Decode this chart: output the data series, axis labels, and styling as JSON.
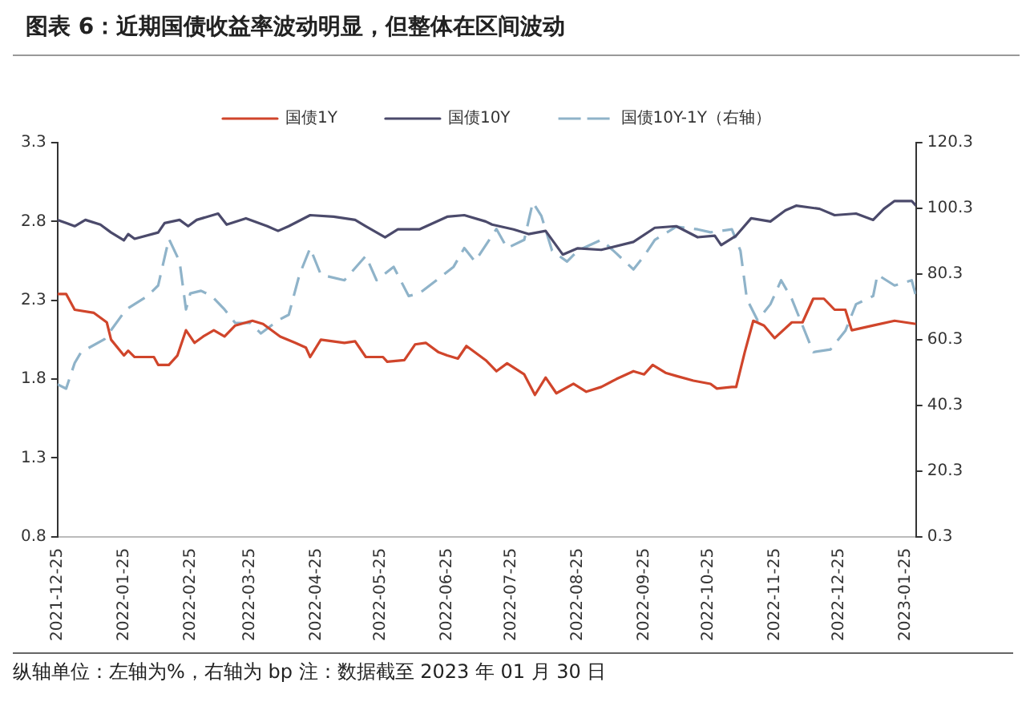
{
  "chart_data": {
    "type": "line",
    "title": "图表 6：近期国债收益率波动明显，但整体在区间波动",
    "annotations": [
      "纵轴单位：左轴为%，右轴为 bp   注：数据截至 2023 年 01 月 30 日"
    ],
    "xlim": [
      "2021-12-25",
      "2023-01-30"
    ],
    "xticks": [
      "2021-12-25",
      "2022-01-25",
      "2022-02-25",
      "2022-03-25",
      "2022-04-25",
      "2022-05-25",
      "2022-06-25",
      "2022-07-25",
      "2022-08-25",
      "2022-09-25",
      "2022-10-25",
      "2022-11-25",
      "2022-12-25",
      "2023-01-25"
    ],
    "ylim": [
      0.8,
      3.3
    ],
    "yticks": [
      0.8,
      1.3,
      1.8,
      2.3,
      2.8,
      3.3
    ],
    "y2lim": [
      0.3,
      120.3
    ],
    "y2ticks": [
      0.3,
      20.3,
      40.3,
      60.3,
      80.3,
      100.3,
      120.3
    ],
    "grid": false,
    "legend": "top",
    "marker": "none",
    "series": [
      {
        "name": "国债1Y",
        "color": "#d0452b",
        "line_style": "solid",
        "x": [
          "2021-12-25",
          "2021-12-29",
          "2022-01-02",
          "2022-01-11",
          "2022-01-17",
          "2022-01-19",
          "2022-01-25",
          "2022-01-27",
          "2022-01-30",
          "2022-02-08",
          "2022-02-10",
          "2022-02-15",
          "2022-02-19",
          "2022-02-23",
          "2022-02-27",
          "2022-03-03",
          "2022-03-08",
          "2022-03-13",
          "2022-03-18",
          "2022-03-26",
          "2022-03-31",
          "2022-04-08",
          "2022-04-15",
          "2022-04-20",
          "2022-04-22",
          "2022-04-27",
          "2022-05-08",
          "2022-05-13",
          "2022-05-18",
          "2022-05-26",
          "2022-05-28",
          "2022-06-05",
          "2022-06-10",
          "2022-06-15",
          "2022-06-21",
          "2022-06-25",
          "2022-06-30",
          "2022-07-04",
          "2022-07-13",
          "2022-07-18",
          "2022-07-23",
          "2022-07-31",
          "2022-08-05",
          "2022-08-10",
          "2022-08-15",
          "2022-08-23",
          "2022-08-29",
          "2022-09-05",
          "2022-09-12",
          "2022-09-20",
          "2022-09-25",
          "2022-09-29",
          "2022-10-05",
          "2022-10-10",
          "2022-10-18",
          "2022-10-26",
          "2022-10-29",
          "2022-11-05",
          "2022-11-07",
          "2022-11-11",
          "2022-11-15",
          "2022-11-20",
          "2022-11-25",
          "2022-12-03",
          "2022-12-08",
          "2022-12-13",
          "2022-12-18",
          "2022-12-23",
          "2022-12-28",
          "2022-12-31",
          "2023-01-10",
          "2023-01-20",
          "2023-01-30"
        ],
        "values": [
          2.34,
          2.34,
          2.24,
          2.22,
          2.16,
          2.05,
          1.95,
          1.98,
          1.94,
          1.94,
          1.89,
          1.89,
          1.95,
          2.11,
          2.03,
          2.07,
          2.11,
          2.07,
          2.14,
          2.17,
          2.15,
          2.07,
          2.03,
          2.0,
          1.94,
          2.05,
          2.03,
          2.04,
          1.94,
          1.94,
          1.91,
          1.92,
          2.02,
          2.03,
          1.97,
          1.95,
          1.93,
          2.01,
          1.92,
          1.85,
          1.9,
          1.83,
          1.7,
          1.81,
          1.71,
          1.77,
          1.72,
          1.75,
          1.8,
          1.85,
          1.83,
          1.89,
          1.84,
          1.82,
          1.79,
          1.77,
          1.74,
          1.75,
          1.75,
          1.97,
          2.17,
          2.14,
          2.06,
          2.16,
          2.16,
          2.31,
          2.31,
          2.24,
          2.24,
          2.11,
          2.14,
          2.17,
          2.15
        ]
      },
      {
        "name": "国债10Y",
        "color": "#4b4a6b",
        "line_style": "solid",
        "x": [
          "2021-12-25",
          "2021-12-29",
          "2022-01-02",
          "2022-01-07",
          "2022-01-14",
          "2022-01-19",
          "2022-01-25",
          "2022-01-27",
          "2022-01-30",
          "2022-02-10",
          "2022-02-13",
          "2022-02-20",
          "2022-02-24",
          "2022-02-28",
          "2022-03-10",
          "2022-03-14",
          "2022-03-23",
          "2022-04-02",
          "2022-04-07",
          "2022-04-12",
          "2022-04-22",
          "2022-05-03",
          "2022-05-13",
          "2022-05-18",
          "2022-05-27",
          "2022-06-02",
          "2022-06-12",
          "2022-06-25",
          "2022-07-03",
          "2022-07-13",
          "2022-07-16",
          "2022-07-26",
          "2022-08-02",
          "2022-08-10",
          "2022-08-18",
          "2022-08-25",
          "2022-09-05",
          "2022-09-20",
          "2022-09-30",
          "2022-10-10",
          "2022-10-20",
          "2022-10-28",
          "2022-10-31",
          "2022-11-07",
          "2022-11-14",
          "2022-11-23",
          "2022-11-30",
          "2022-12-05",
          "2022-12-16",
          "2022-12-23",
          "2023-01-02",
          "2023-01-10",
          "2023-01-15",
          "2023-01-20",
          "2023-01-28",
          "2023-01-30"
        ],
        "values": [
          2.81,
          2.79,
          2.77,
          2.81,
          2.78,
          2.73,
          2.68,
          2.72,
          2.69,
          2.73,
          2.79,
          2.81,
          2.77,
          2.81,
          2.85,
          2.78,
          2.82,
          2.77,
          2.74,
          2.77,
          2.84,
          2.83,
          2.81,
          2.77,
          2.7,
          2.75,
          2.75,
          2.83,
          2.84,
          2.8,
          2.78,
          2.75,
          2.72,
          2.74,
          2.59,
          2.63,
          2.62,
          2.67,
          2.76,
          2.77,
          2.7,
          2.71,
          2.65,
          2.71,
          2.82,
          2.8,
          2.87,
          2.9,
          2.88,
          2.84,
          2.85,
          2.81,
          2.88,
          2.93,
          2.93,
          2.9
        ]
      },
      {
        "name": "国债10Y-1Y（右轴）",
        "color": "#8fb3c9",
        "line_style": "dashed",
        "axis": "y2",
        "x": [
          "2021-12-25",
          "2021-12-29",
          "2022-01-02",
          "2022-01-05",
          "2022-01-16",
          "2022-01-26",
          "2022-02-05",
          "2022-02-10",
          "2022-02-15",
          "2022-02-20",
          "2022-02-23",
          "2022-02-25",
          "2022-03-02",
          "2022-03-07",
          "2022-03-13",
          "2022-03-18",
          "2022-03-25",
          "2022-03-30",
          "2022-04-07",
          "2022-04-12",
          "2022-04-17",
          "2022-04-22",
          "2022-04-27",
          "2022-05-08",
          "2022-05-18",
          "2022-05-23",
          "2022-05-31",
          "2022-06-07",
          "2022-06-12",
          "2022-06-20",
          "2022-06-28",
          "2022-07-03",
          "2022-07-08",
          "2022-07-18",
          "2022-07-23",
          "2022-07-31",
          "2022-08-04",
          "2022-08-08",
          "2022-08-13",
          "2022-08-20",
          "2022-08-25",
          "2022-09-05",
          "2022-09-12",
          "2022-09-20",
          "2022-09-25",
          "2022-09-30",
          "2022-10-10",
          "2022-10-20",
          "2022-10-26",
          "2022-11-05",
          "2022-11-09",
          "2022-11-12",
          "2022-11-17",
          "2022-11-23",
          "2022-11-28",
          "2022-12-03",
          "2022-12-08",
          "2022-12-13",
          "2022-12-21",
          "2022-12-28",
          "2023-01-02",
          "2023-01-10",
          "2023-01-12",
          "2023-01-20",
          "2023-01-28",
          "2023-01-30"
        ],
        "values": [
          46.7,
          45.4,
          53.2,
          56.5,
          60.5,
          69.5,
          73.6,
          76.8,
          91.0,
          84.1,
          69.5,
          74.4,
          75.2,
          73.6,
          69.5,
          65.4,
          65.4,
          62.2,
          66.2,
          67.9,
          80.1,
          88.2,
          80.1,
          78.4,
          85.8,
          78.4,
          82.5,
          73.6,
          74.4,
          78.4,
          82.5,
          88.2,
          84.1,
          94.0,
          88.2,
          90.7,
          102.1,
          98.0,
          87.4,
          84.1,
          87.4,
          90.7,
          86.6,
          81.7,
          85.8,
          90.7,
          94.7,
          93.9,
          93.0,
          93.9,
          87.4,
          72.7,
          66.2,
          71.1,
          78.4,
          72.7,
          64.6,
          56.5,
          57.3,
          63.0,
          71.1,
          73.6,
          80.1,
          76.8,
          78.4,
          73.6
        ]
      }
    ]
  }
}
